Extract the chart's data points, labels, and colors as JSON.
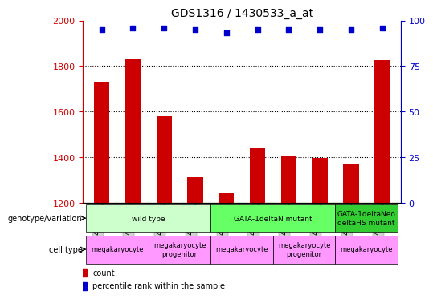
{
  "title": "GDS1316 / 1430533_a_at",
  "samples": [
    "GSM45786",
    "GSM45787",
    "GSM45790",
    "GSM45791",
    "GSM45788",
    "GSM45789",
    "GSM45792",
    "GSM45793",
    "GSM45794",
    "GSM45795"
  ],
  "bar_values": [
    1730,
    1830,
    1580,
    1310,
    1240,
    1440,
    1405,
    1395,
    1370,
    1825
  ],
  "percentile_values": [
    95,
    96,
    96,
    95,
    93,
    95,
    95,
    95,
    95,
    96
  ],
  "bar_color": "#cc0000",
  "dot_color": "#0000cc",
  "ylim_left": [
    1200,
    2000
  ],
  "ylim_right": [
    0,
    100
  ],
  "yticks_left": [
    1200,
    1400,
    1600,
    1800,
    2000
  ],
  "yticks_right": [
    0,
    25,
    50,
    75,
    100
  ],
  "grid_ticks": [
    1400,
    1600,
    1800
  ],
  "genotype_groups": [
    {
      "label": "wild type",
      "start": 0,
      "end": 4,
      "color": "#ccffcc"
    },
    {
      "label": "GATA-1deltaN mutant",
      "start": 4,
      "end": 8,
      "color": "#66ff66"
    },
    {
      "label": "GATA-1deltaNeo\ndeltaHS mutant",
      "start": 8,
      "end": 10,
      "color": "#33cc33"
    }
  ],
  "cell_groups": [
    {
      "label": "megakaryocyte",
      "start": 0,
      "end": 2,
      "color": "#ff99ff"
    },
    {
      "label": "megakaryocyte\nprogenitor",
      "start": 2,
      "end": 4,
      "color": "#ff99ff"
    },
    {
      "label": "megakaryocyte",
      "start": 4,
      "end": 6,
      "color": "#ff99ff"
    },
    {
      "label": "megakaryocyte\nprogenitor",
      "start": 6,
      "end": 8,
      "color": "#ff99ff"
    },
    {
      "label": "megakaryocyte",
      "start": 8,
      "end": 10,
      "color": "#ff99ff"
    }
  ],
  "left_axis_color": "#cc0000",
  "right_axis_color": "#0000cc",
  "xlabel_rotation": 90,
  "bar_width": 0.5,
  "legend_count_label": "count",
  "legend_percentile_label": "percentile rank within the sample",
  "genotype_row_label": "genotype/variation",
  "cell_row_label": "cell type"
}
